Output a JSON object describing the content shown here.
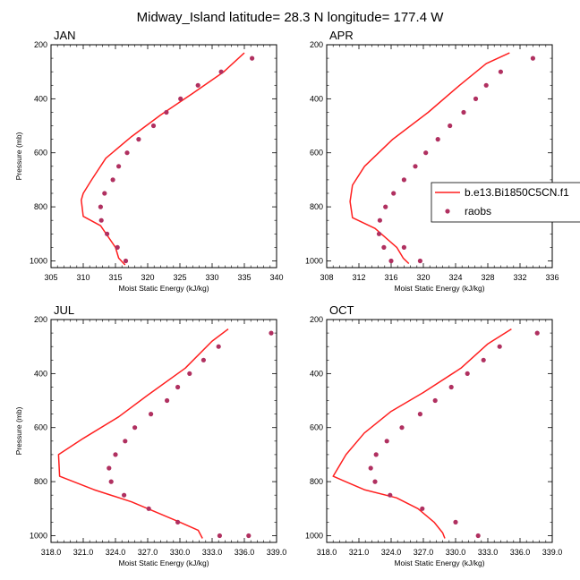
{
  "title": "Midway_Island  latitude= 28.3 N longitude= 177.4 W",
  "colors": {
    "model": "#ff1f1f",
    "obs": "#b03060",
    "axis": "#000000"
  },
  "legend": {
    "placement": "right, overlapping the APR panel",
    "model_label": "b.e13.Bi1850C5CN.f1",
    "obs_label": "raobs"
  },
  "chart_data": [
    {
      "type": "line",
      "panel": "JAN",
      "xlabel": "Moist Static Energy (kJ/kg)",
      "ylabel": "Pressure (mb)",
      "xlim": [
        305,
        340
      ],
      "ylim": [
        1025,
        200
      ],
      "xticks": [
        "305",
        "310",
        "315",
        "320",
        "325",
        "330",
        "335",
        "340"
      ],
      "yticks": [
        "200",
        "400",
        "600",
        "800",
        "1000"
      ],
      "series": [
        {
          "name": "b.e13.Bi1850C5CN.f1",
          "style": "line",
          "x": [
            335.0,
            331.8,
            327.0,
            322.0,
            317.5,
            313.5,
            311.3,
            310.0,
            309.7,
            310.0,
            312.7,
            315.0,
            315.5,
            316.5
          ],
          "y": [
            230,
            300,
            380,
            460,
            540,
            620,
            700,
            750,
            775,
            835,
            870,
            950,
            990,
            1015
          ]
        },
        {
          "name": "raobs",
          "style": "markers",
          "x": [
            336.2,
            331.4,
            327.8,
            325.1,
            322.9,
            320.9,
            318.6,
            316.8,
            315.5,
            314.6,
            313.3,
            312.7,
            312.8,
            313.7,
            315.3,
            316.6
          ],
          "y": [
            250,
            300,
            350,
            400,
            450,
            500,
            550,
            600,
            650,
            700,
            750,
            800,
            850,
            900,
            950,
            1000
          ]
        }
      ]
    },
    {
      "type": "line",
      "panel": "APR",
      "xlabel": "Moist Static Energy (kJ/kg)",
      "ylabel": "",
      "xlim": [
        308,
        336
      ],
      "ylim": [
        1025,
        200
      ],
      "xticks": [
        "308",
        "312",
        "316",
        "320",
        "324",
        "328",
        "332",
        "336"
      ],
      "yticks": [
        "200",
        "400",
        "600",
        "800",
        "1000"
      ],
      "series": [
        {
          "name": "b.e13.Bi1850C5CN.f1",
          "style": "line",
          "x": [
            330.7,
            327.8,
            324.5,
            320.6,
            316.2,
            312.7,
            311.2,
            310.9,
            311.2,
            314.0,
            316.7,
            317.5,
            318.2
          ],
          "y": [
            230,
            270,
            350,
            450,
            550,
            650,
            720,
            780,
            840,
            880,
            950,
            990,
            1010
          ]
        },
        {
          "name": "raobs",
          "style": "markers",
          "x": [
            333.6,
            329.6,
            327.8,
            326.5,
            325.0,
            323.3,
            321.8,
            320.3,
            319.0,
            317.6,
            316.3,
            315.3,
            314.6,
            314.5,
            315.1,
            316.0,
            317.6,
            319.6
          ],
          "y": [
            250,
            300,
            350,
            400,
            450,
            500,
            550,
            600,
            650,
            700,
            750,
            800,
            850,
            900,
            950,
            1000,
            950,
            1000
          ]
        }
      ]
    },
    {
      "type": "line",
      "panel": "JUL",
      "xlabel": "Moist Static Energy (kJ/kg)",
      "ylabel": "Pressure (mb)",
      "xlim": [
        318,
        339
      ],
      "ylim": [
        1025,
        200
      ],
      "xticks": [
        "318.0",
        "321.0",
        "324.0",
        "327.0",
        "330.0",
        "333.0",
        "336.0",
        "339.0"
      ],
      "yticks": [
        "200",
        "400",
        "600",
        "800",
        "1000"
      ],
      "series": [
        {
          "name": "b.e13.Bi1850C5CN.f1",
          "style": "line",
          "x": [
            334.5,
            333.0,
            330.5,
            327.0,
            324.3,
            321.0,
            318.7,
            318.8,
            322.0,
            325.5,
            328.2,
            330.0,
            331.7,
            332.1
          ],
          "y": [
            235,
            280,
            380,
            480,
            560,
            640,
            700,
            780,
            830,
            875,
            920,
            950,
            980,
            1010
          ]
        },
        {
          "name": "raobs",
          "style": "markers",
          "x": [
            338.5,
            333.6,
            332.2,
            330.9,
            329.8,
            328.8,
            327.3,
            325.8,
            324.9,
            324.0,
            323.4,
            323.6,
            324.8,
            327.1,
            329.8,
            333.7,
            336.4
          ],
          "y": [
            250,
            300,
            350,
            400,
            450,
            500,
            550,
            600,
            650,
            700,
            750,
            800,
            850,
            900,
            950,
            1000,
            1000
          ]
        }
      ]
    },
    {
      "type": "line",
      "panel": "OCT",
      "xlabel": "Moist Static Energy (kJ/kg)",
      "ylabel": "",
      "xlim": [
        318,
        339
      ],
      "ylim": [
        1025,
        200
      ],
      "xticks": [
        "318.0",
        "321.0",
        "324.0",
        "327.0",
        "330.0",
        "333.0",
        "336.0",
        "339.0"
      ],
      "yticks": [
        "200",
        "400",
        "600",
        "800",
        "1000"
      ],
      "series": [
        {
          "name": "b.e13.Bi1850C5CN.f1",
          "style": "line",
          "x": [
            335.2,
            333.0,
            330.5,
            327.0,
            324.0,
            321.5,
            319.8,
            318.6,
            321.5,
            324.5,
            326.5,
            328.0,
            328.8,
            329.0
          ],
          "y": [
            235,
            290,
            380,
            470,
            540,
            620,
            700,
            780,
            830,
            860,
            900,
            950,
            990,
            1010
          ]
        },
        {
          "name": "raobs",
          "style": "markers",
          "x": [
            337.6,
            334.1,
            332.6,
            331.1,
            329.6,
            328.1,
            326.7,
            325.0,
            323.6,
            322.6,
            322.1,
            322.5,
            323.9,
            326.9,
            330.0,
            332.1
          ],
          "y": [
            250,
            300,
            350,
            400,
            450,
            500,
            550,
            600,
            650,
            700,
            750,
            800,
            850,
            900,
            950,
            1000
          ]
        }
      ]
    }
  ]
}
